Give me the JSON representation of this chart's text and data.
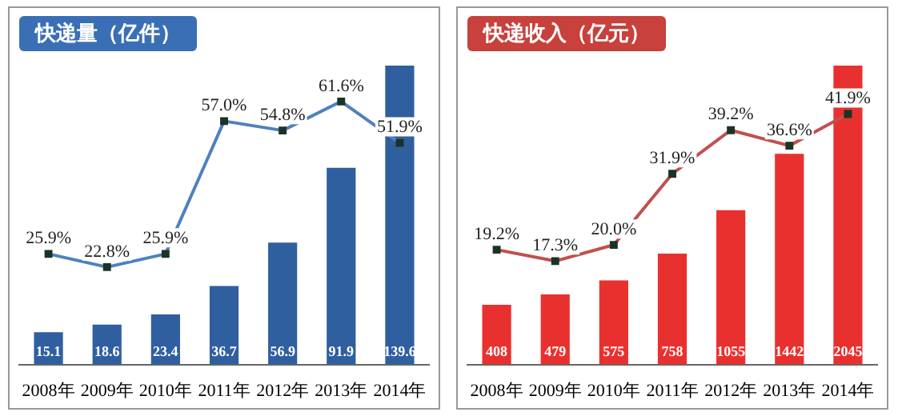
{
  "chart_data": [
    {
      "type": "bar",
      "title": "快递量（亿件）",
      "categories": [
        "2008年",
        "2009年",
        "2010年",
        "2011年",
        "2012年",
        "2013年",
        "2014年"
      ],
      "tick_labels": "x",
      "marker": "square",
      "series": [
        {
          "color": "#2f5f9f",
          "values": [
            15.1,
            18.6,
            23.4,
            36.7,
            56.9,
            91.9,
            139.6
          ],
          "value_labels": [
            "15.1",
            "18.6",
            "23.4",
            "36.7",
            "56.9",
            "91.9",
            "139.6"
          ]
        },
        {
          "type": "line",
          "axis": "y2",
          "color": "#4f81bd",
          "values": [
            25.9,
            22.8,
            25.9,
            57.0,
            54.8,
            61.6,
            51.9
          ],
          "value_labels": [
            "25.9%",
            "22.8%",
            "25.9%",
            "57.0%",
            "54.8%",
            "61.6%",
            "51.9%"
          ]
        }
      ]
    },
    {
      "type": "bar",
      "title": "快递收入（亿元）",
      "categories": [
        "2008年",
        "2009年",
        "2010年",
        "2011年",
        "2012年",
        "2013年",
        "2014年"
      ],
      "tick_labels": "x",
      "marker": "square",
      "series": [
        {
          "color": "#e8312f",
          "values": [
            408,
            479,
            575,
            758,
            1055,
            1442,
            2045
          ],
          "value_labels": [
            "408",
            "479",
            "575",
            "758",
            "1055",
            "1442",
            "2045"
          ]
        },
        {
          "type": "line",
          "axis": "y2",
          "color": "#c0504d",
          "values": [
            19.2,
            17.3,
            20.0,
            31.9,
            39.2,
            36.6,
            41.9
          ],
          "value_labels": [
            "19.2%",
            "17.3%",
            "20.0%",
            "31.9%",
            "39.2%",
            "36.6%",
            "41.9%"
          ]
        }
      ]
    }
  ]
}
